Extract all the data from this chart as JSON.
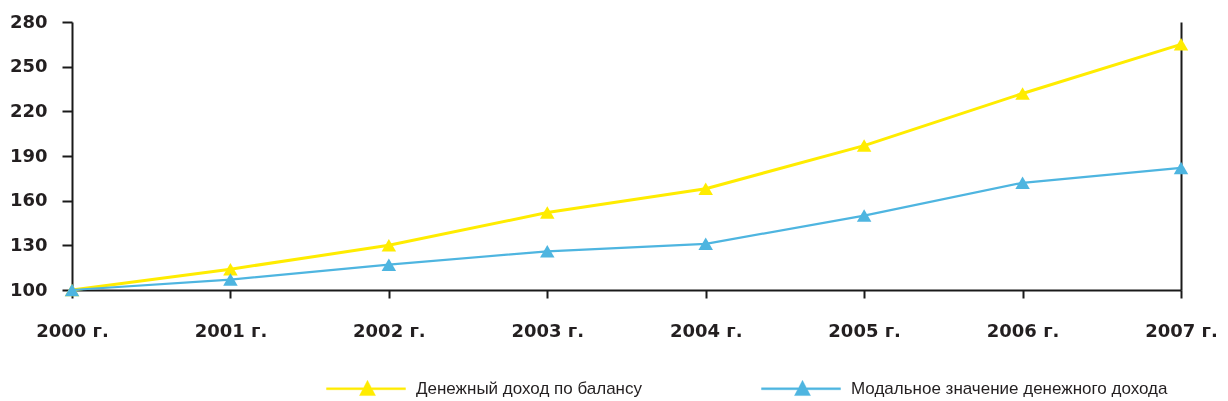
{
  "chart_data": {
    "type": "line",
    "categories": [
      "2000 г.",
      "2001 г.",
      "2002 г.",
      "2003 г.",
      "2004 г.",
      "2005 г.",
      "2006 г.",
      "2007 г."
    ],
    "series": [
      {
        "name": "Денежный доход по балансу",
        "color": "#ffec00",
        "values": [
          100,
          114,
          130,
          152,
          168,
          197,
          232,
          265
        ]
      },
      {
        "name": "Модальное значение денежного дохода",
        "color": "#4eb5e0",
        "values": [
          100,
          107,
          117,
          126,
          131,
          150,
          172,
          182
        ]
      }
    ],
    "ylim": [
      100,
      280
    ],
    "yticks": [
      100,
      130,
      160,
      190,
      220,
      250,
      280
    ],
    "legend": "bottom",
    "marker": "triangle",
    "line_style": "solid"
  }
}
